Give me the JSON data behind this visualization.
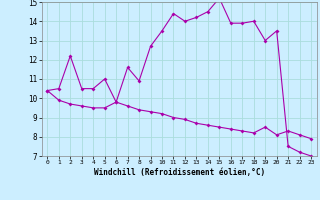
{
  "xlabel": "Windchill (Refroidissement éolien,°C)",
  "upper_x": [
    0,
    1,
    2,
    3,
    4,
    5,
    6,
    7,
    8,
    9,
    10,
    11,
    12,
    13,
    14,
    15,
    16,
    17,
    18,
    19,
    20,
    21,
    22,
    23
  ],
  "upper_y": [
    10.4,
    10.5,
    12.2,
    10.5,
    10.5,
    11.0,
    9.8,
    11.6,
    10.9,
    12.7,
    13.5,
    14.4,
    14.0,
    14.2,
    14.5,
    15.2,
    13.9,
    13.9,
    14.0,
    13.0,
    13.5,
    7.5,
    7.2,
    7.0
  ],
  "lower_x": [
    0,
    1,
    2,
    3,
    4,
    5,
    6,
    7,
    8,
    9,
    10,
    11,
    12,
    13,
    14,
    15,
    16,
    17,
    18,
    19,
    20,
    21,
    22,
    23
  ],
  "lower_y": [
    10.4,
    9.9,
    9.7,
    9.6,
    9.5,
    9.5,
    9.8,
    9.6,
    9.4,
    9.3,
    9.2,
    9.0,
    8.9,
    8.7,
    8.6,
    8.5,
    8.4,
    8.3,
    8.2,
    8.5,
    8.1,
    8.3,
    8.1,
    7.9
  ],
  "line_color": "#aa00aa",
  "bg_color": "#cceeff",
  "grid_color": "#aadddd",
  "ylim": [
    7,
    15
  ],
  "xlim": [
    -0.5,
    23.5
  ],
  "yticks": [
    7,
    8,
    9,
    10,
    11,
    12,
    13,
    14,
    15
  ],
  "xticks": [
    0,
    1,
    2,
    3,
    4,
    5,
    6,
    7,
    8,
    9,
    10,
    11,
    12,
    13,
    14,
    15,
    16,
    17,
    18,
    19,
    20,
    21,
    22,
    23
  ]
}
